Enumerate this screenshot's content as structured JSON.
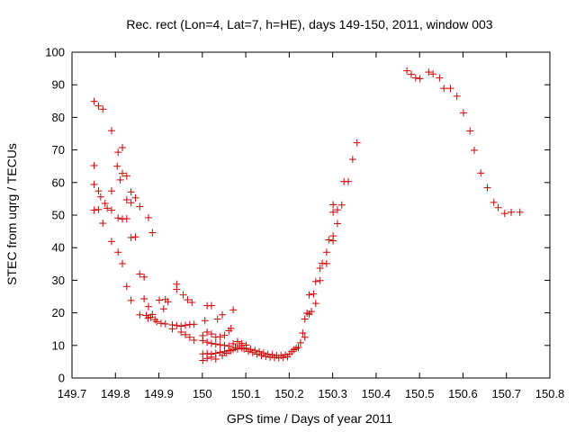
{
  "chart_data": {
    "type": "scatter",
    "title": "Rec. rect (Lon=4, Lat=7, h=HE), days 149-150, 2011, window 003",
    "xlabel": "GPS time / Days of year 2011",
    "ylabel": "STEC from uqrg / TECUs",
    "xlim": [
      149.7,
      150.8
    ],
    "ylim": [
      0,
      100
    ],
    "xticks": [
      149.7,
      149.8,
      149.9,
      150,
      150.1,
      150.2,
      150.3,
      150.4,
      150.5,
      150.6,
      150.7,
      150.8
    ],
    "xtick_labels": [
      "149.7",
      "149.8",
      "149.9",
      "150",
      "150.1",
      "150.2",
      "150.3",
      "150.4",
      "150.5",
      "150.6",
      "150.7",
      "150.8"
    ],
    "yticks": [
      0,
      10,
      20,
      30,
      40,
      50,
      60,
      70,
      80,
      90,
      100
    ],
    "ytick_labels": [
      "0",
      "10",
      "20",
      "30",
      "40",
      "50",
      "60",
      "70",
      "80",
      "90",
      "100"
    ],
    "grid": false,
    "marker_color": "#cc0000",
    "series": [
      {
        "marker": "plus",
        "points": [
          [
            149.751,
            84.9
          ],
          [
            149.761,
            83.5
          ],
          [
            149.771,
            82.5
          ],
          [
            149.791,
            75.9
          ],
          [
            149.806,
            69.3
          ],
          [
            149.816,
            70.7
          ],
          [
            149.751,
            65.2
          ],
          [
            149.804,
            65.0
          ],
          [
            149.816,
            62.8
          ],
          [
            149.826,
            62.0
          ],
          [
            149.751,
            59.4
          ],
          [
            149.761,
            57.4
          ],
          [
            149.791,
            57.4
          ],
          [
            149.811,
            60.8
          ],
          [
            149.836,
            57.1
          ],
          [
            149.846,
            55.3
          ],
          [
            149.826,
            54.7
          ],
          [
            149.766,
            55.6
          ],
          [
            149.776,
            53.6
          ],
          [
            149.836,
            53.8
          ],
          [
            149.856,
            52.6
          ],
          [
            149.751,
            51.5
          ],
          [
            149.761,
            51.7
          ],
          [
            149.781,
            52.1
          ],
          [
            149.791,
            51.5
          ],
          [
            149.806,
            49.1
          ],
          [
            149.816,
            48.8
          ],
          [
            149.826,
            48.9
          ],
          [
            149.876,
            49.2
          ],
          [
            149.771,
            47.5
          ],
          [
            149.885,
            44.6
          ],
          [
            149.836,
            43.1
          ],
          [
            149.846,
            43.3
          ],
          [
            149.791,
            41.9
          ],
          [
            149.806,
            38.6
          ],
          [
            149.816,
            35.1
          ],
          [
            149.856,
            31.9
          ],
          [
            149.866,
            31.0
          ],
          [
            149.826,
            28.1
          ],
          [
            149.836,
            23.8
          ],
          [
            149.866,
            24.3
          ],
          [
            149.871,
            19.2
          ],
          [
            149.856,
            19.4
          ],
          [
            149.876,
            21.9
          ],
          [
            149.885,
            19.5
          ],
          [
            149.875,
            18.4
          ],
          [
            149.881,
            18.6
          ],
          [
            149.891,
            17.9
          ],
          [
            149.895,
            17.3
          ],
          [
            149.905,
            16.8
          ],
          [
            149.901,
            23.9
          ],
          [
            149.915,
            24.1
          ],
          [
            149.921,
            23.4
          ],
          [
            149.941,
            28.8
          ],
          [
            149.941,
            27.2
          ],
          [
            149.956,
            25.5
          ],
          [
            149.966,
            24.0
          ],
          [
            149.976,
            23.2
          ],
          [
            149.915,
            16.6
          ],
          [
            149.931,
            16.3
          ],
          [
            149.941,
            16.1
          ],
          [
            149.951,
            15.9
          ],
          [
            149.961,
            16.2
          ],
          [
            149.971,
            16.4
          ],
          [
            149.981,
            16.5
          ],
          [
            149.931,
            15.1
          ],
          [
            149.951,
            14.1
          ],
          [
            149.961,
            13.3
          ],
          [
            149.971,
            12.5
          ],
          [
            149.981,
            11.6
          ],
          [
            149.911,
            21.2
          ],
          [
            150.006,
            17.6
          ],
          [
            150.011,
            22.2
          ],
          [
            150.021,
            22.2
          ],
          [
            150.035,
            18.1
          ],
          [
            150.046,
            19.4
          ],
          [
            150.071,
            20.9
          ],
          [
            150.001,
            13.0
          ],
          [
            150.011,
            14.1
          ],
          [
            150.021,
            13.5
          ],
          [
            150.031,
            12.6
          ],
          [
            150.041,
            12.6
          ],
          [
            150.051,
            13.1
          ],
          [
            150.061,
            14.5
          ],
          [
            150.066,
            15.2
          ],
          [
            150.001,
            11.5
          ],
          [
            150.011,
            11.0
          ],
          [
            150.021,
            10.6
          ],
          [
            150.031,
            10.4
          ],
          [
            150.041,
            10.2
          ],
          [
            150.051,
            10.0
          ],
          [
            150.061,
            9.8
          ],
          [
            150.071,
            10.5
          ],
          [
            150.081,
            11.2
          ],
          [
            150.091,
            10.6
          ],
          [
            150.101,
            10.1
          ],
          [
            150.001,
            7.4
          ],
          [
            150.011,
            7.5
          ],
          [
            150.021,
            7.3
          ],
          [
            150.031,
            7.6
          ],
          [
            150.041,
            7.9
          ],
          [
            150.051,
            8.1
          ],
          [
            150.061,
            8.4
          ],
          [
            150.071,
            8.7
          ],
          [
            150.081,
            8.9
          ],
          [
            150.091,
            9.2
          ],
          [
            150.101,
            9.1
          ],
          [
            150.111,
            8.8
          ],
          [
            150.001,
            5.4
          ],
          [
            150.011,
            6.0
          ],
          [
            150.021,
            6.4
          ],
          [
            150.031,
            5.8
          ],
          [
            150.046,
            6.9
          ],
          [
            150.056,
            7.6
          ],
          [
            150.066,
            8.4
          ],
          [
            150.076,
            9.3
          ],
          [
            150.086,
            9.9
          ],
          [
            150.096,
            8.9
          ],
          [
            150.106,
            8.2
          ],
          [
            150.116,
            7.8
          ],
          [
            150.121,
            8.5
          ],
          [
            150.131,
            8.1
          ],
          [
            150.141,
            7.7
          ],
          [
            150.151,
            7.3
          ],
          [
            150.161,
            7.1
          ],
          [
            150.171,
            6.9
          ],
          [
            150.181,
            6.9
          ],
          [
            150.191,
            7.1
          ],
          [
            150.201,
            7.4
          ],
          [
            150.126,
            7.3
          ],
          [
            150.136,
            6.9
          ],
          [
            150.146,
            6.6
          ],
          [
            150.156,
            6.4
          ],
          [
            150.166,
            6.3
          ],
          [
            150.176,
            6.2
          ],
          [
            150.186,
            6.3
          ],
          [
            150.196,
            6.5
          ],
          [
            150.206,
            8.1
          ],
          [
            150.216,
            9.1
          ],
          [
            150.226,
            10.8
          ],
          [
            150.211,
            8.7
          ],
          [
            150.221,
            9.4
          ],
          [
            150.236,
            12.5
          ],
          [
            150.231,
            13.8
          ],
          [
            150.236,
            18.1
          ],
          [
            150.246,
            19.6
          ],
          [
            150.241,
            19.9
          ],
          [
            150.251,
            20.4
          ],
          [
            150.246,
            25.5
          ],
          [
            150.256,
            25.8
          ],
          [
            150.261,
            22.9
          ],
          [
            150.261,
            29.6
          ],
          [
            150.271,
            29.9
          ],
          [
            150.271,
            33.7
          ],
          [
            150.276,
            35.2
          ],
          [
            150.286,
            35.1
          ],
          [
            150.286,
            38.6
          ],
          [
            150.291,
            42.4
          ],
          [
            150.301,
            42.1
          ],
          [
            150.301,
            43.6
          ],
          [
            150.301,
            50.9
          ],
          [
            150.311,
            51.6
          ],
          [
            150.311,
            47.4
          ],
          [
            150.301,
            53.2
          ],
          [
            150.321,
            53.1
          ],
          [
            150.326,
            60.3
          ],
          [
            150.336,
            60.3
          ],
          [
            150.346,
            67.1
          ],
          [
            150.356,
            72.2
          ],
          [
            150.471,
            94.3
          ],
          [
            150.481,
            93.2
          ],
          [
            150.491,
            92.1
          ],
          [
            150.501,
            91.9
          ],
          [
            150.521,
            93.9
          ],
          [
            150.531,
            93.3
          ],
          [
            150.546,
            92.1
          ],
          [
            150.556,
            88.9
          ],
          [
            150.571,
            88.9
          ],
          [
            150.586,
            86.5
          ],
          [
            150.601,
            81.4
          ],
          [
            150.616,
            75.8
          ],
          [
            150.626,
            69.9
          ],
          [
            150.641,
            62.9
          ],
          [
            150.656,
            58.4
          ],
          [
            150.671,
            53.9
          ],
          [
            150.681,
            52.3
          ],
          [
            150.696,
            50.5
          ],
          [
            150.711,
            50.9
          ],
          [
            150.731,
            50.9
          ]
        ]
      }
    ]
  }
}
